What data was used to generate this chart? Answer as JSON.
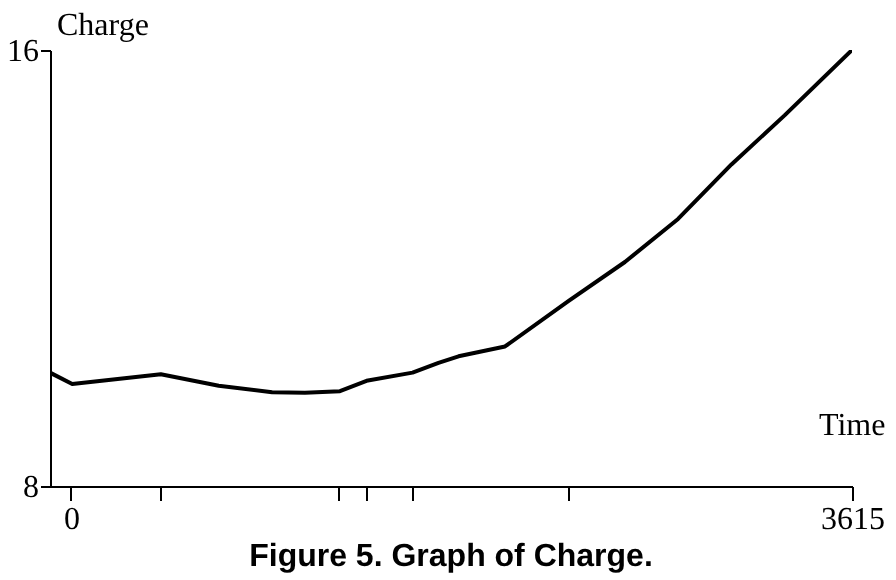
{
  "chart_data": {
    "type": "line",
    "title": "Figure 5. Graph of Charge.",
    "xlabel": "Time",
    "ylabel": "Charge",
    "x": [
      -97,
      6,
      416,
      684,
      931,
      1083,
      1245,
      1368,
      1581,
      1701,
      1794,
      2009,
      2302,
      2564,
      2810,
      3057,
      3303,
      3615
    ],
    "series": [
      {
        "color": "#000000",
        "values": [
          10.08,
          9.87,
          10.05,
          9.84,
          9.72,
          9.71,
          9.74,
          9.93,
          10.08,
          10.26,
          10.38,
          10.56,
          11.39,
          12.11,
          12.9,
          13.9,
          14.8,
          16.0
        ]
      }
    ],
    "xlim": [
      -97,
      3615
    ],
    "ylim": [
      8,
      16
    ],
    "xticks": [
      0,
      {
        "value": 416,
        "label": null
      },
      {
        "value": 1239,
        "label": null
      },
      {
        "value": 1368,
        "label": null
      },
      {
        "value": 1581,
        "label": null
      },
      {
        "value": 2302,
        "label": null
      },
      3615
    ],
    "yticks": [
      8,
      16
    ]
  }
}
